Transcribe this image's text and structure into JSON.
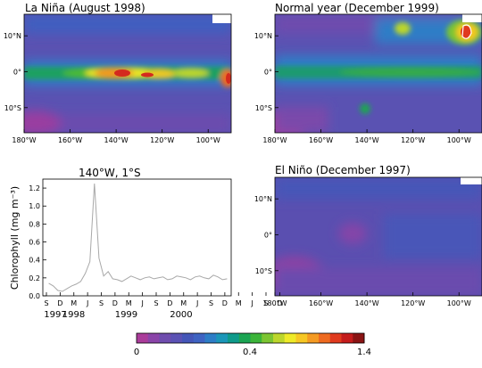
{
  "panels": {
    "la_nina": {
      "title": "La Niña (August 1998)"
    },
    "normal": {
      "title": "Normal year (December 1999)"
    },
    "el_nino": {
      "title": "El Niño (December 1997)"
    }
  },
  "map_axes": {
    "lon_ticks": [
      "180°W",
      "160°W",
      "140°W",
      "120°W",
      "100°W"
    ],
    "lat_ticks": [
      "10°N",
      "0°",
      "10°S"
    ],
    "lon_range": [
      -180,
      -90
    ],
    "lat_range": [
      -17,
      16
    ]
  },
  "timeseries": {
    "title": "140°W, 1°S",
    "ylabel": "Chlorophyll (mg m⁻³)",
    "y_ticks": [
      "0.0",
      "0.2",
      "0.4",
      "0.6",
      "0.8",
      "1.0",
      "1.2"
    ],
    "month_ticks": [
      "S",
      "D",
      "M",
      "J",
      "S",
      "D",
      "M",
      "J",
      "S",
      "D",
      "M",
      "J",
      "S",
      "D",
      "M",
      "J",
      "S",
      "D"
    ],
    "year_labels": [
      "1997",
      "1998",
      "1999",
      "2000"
    ]
  },
  "colorbar": {
    "min_label": "0",
    "mid_label": "0.4",
    "max_label": "1.4",
    "colors": [
      "#aa3c9a",
      "#8a44a8",
      "#6f4dae",
      "#5b52b4",
      "#4456b8",
      "#3e63c2",
      "#2d7dc6",
      "#1b96b8",
      "#0e9a8a",
      "#1aa452",
      "#3cb43a",
      "#7cc532",
      "#bcd62c",
      "#eeea28",
      "#f6c724",
      "#f49a22",
      "#ee6a20",
      "#e03a1e",
      "#c41c1c",
      "#8a1414"
    ]
  },
  "chart_data": [
    {
      "type": "heatmap",
      "title": "La Niña (August 1998)",
      "xlabel": "",
      "ylabel": "",
      "xlim": [
        -180,
        -90
      ],
      "ylim": [
        -17,
        16
      ],
      "x_ticks": [
        "180°W",
        "160°W",
        "140°W",
        "120°W",
        "100°W"
      ],
      "y_ticks": [
        "10°N",
        "0°",
        "10°S"
      ],
      "color_scale": [
        0,
        1.4
      ],
      "features": [
        {
          "kind": "equatorial_band",
          "lon_range": [
            -180,
            -90
          ],
          "lat": 0,
          "value": 0.4
        },
        {
          "kind": "bloom",
          "lon": -140,
          "lat": 0,
          "value": 1.2
        },
        {
          "kind": "bloom",
          "lon": -117,
          "lat": 0,
          "value": 0.9
        },
        {
          "kind": "bloom",
          "lon": -91,
          "lat": -2,
          "value": 1.0
        }
      ]
    },
    {
      "type": "heatmap",
      "title": "Normal year (December 1999)",
      "xlabel": "",
      "ylabel": "",
      "xlim": [
        -180,
        -90
      ],
      "ylim": [
        -17,
        16
      ],
      "x_ticks": [
        "180°W",
        "160°W",
        "140°W",
        "120°W",
        "100°W"
      ],
      "y_ticks": [
        "10°N",
        "0°",
        "10°S"
      ],
      "color_scale": [
        0,
        1.4
      ],
      "features": [
        {
          "kind": "equatorial_band",
          "lon_range": [
            -180,
            -90
          ],
          "lat": 0,
          "value": 0.3
        },
        {
          "kind": "bloom",
          "lon": -96,
          "lat": 12,
          "value": 1.2
        },
        {
          "kind": "bloom",
          "lon": -125,
          "lat": 14,
          "value": 0.6
        },
        {
          "kind": "bloom",
          "lon": -142,
          "lat": -10,
          "value": 0.4
        }
      ]
    },
    {
      "type": "heatmap",
      "title": "El Niño (December 1997)",
      "xlabel": "",
      "ylabel": "",
      "xlim": [
        -180,
        -90
      ],
      "ylim": [
        -17,
        16
      ],
      "x_ticks": [
        "180°W",
        "160°W",
        "140°W",
        "120°W",
        "100°W"
      ],
      "y_ticks": [
        "10°N",
        "0°",
        "10°S"
      ],
      "color_scale": [
        0,
        1.4
      ],
      "features": [
        {
          "kind": "low_field",
          "lon_range": [
            -180,
            -90
          ],
          "value": 0.1
        }
      ]
    },
    {
      "type": "line",
      "title": "140°W, 1°S",
      "xlabel": "",
      "ylabel": "Chlorophyll (mg m⁻³)",
      "ylim": [
        0,
        1.3
      ],
      "x_start": "1997-09",
      "x_end": "2000-12",
      "x": [
        "1997-09",
        "1997-10",
        "1997-11",
        "1997-12",
        "1998-01",
        "1998-02",
        "1998-03",
        "1998-04",
        "1998-05",
        "1998-06",
        "1998-07",
        "1998-08",
        "1998-09",
        "1998-10",
        "1998-11",
        "1998-12",
        "1999-01",
        "1999-02",
        "1999-03",
        "1999-04",
        "1999-05",
        "1999-06",
        "1999-07",
        "1999-08",
        "1999-09",
        "1999-10",
        "1999-11",
        "1999-12",
        "2000-01",
        "2000-02",
        "2000-03",
        "2000-04",
        "2000-05",
        "2000-06",
        "2000-07",
        "2000-08",
        "2000-09",
        "2000-10",
        "2000-11",
        "2000-12"
      ],
      "series": [
        {
          "values": [
            0.14,
            0.11,
            0.06,
            0.05,
            0.08,
            0.11,
            0.13,
            0.16,
            0.25,
            0.38,
            1.25,
            0.42,
            0.22,
            0.27,
            0.19,
            0.18,
            0.16,
            0.19,
            0.22,
            0.2,
            0.18,
            0.2,
            0.21,
            0.19,
            0.2,
            0.21,
            0.18,
            0.19,
            0.22,
            0.21,
            0.2,
            0.18,
            0.21,
            0.22,
            0.2,
            0.19,
            0.23,
            0.21,
            0.18,
            0.19
          ]
        }
      ]
    }
  ]
}
